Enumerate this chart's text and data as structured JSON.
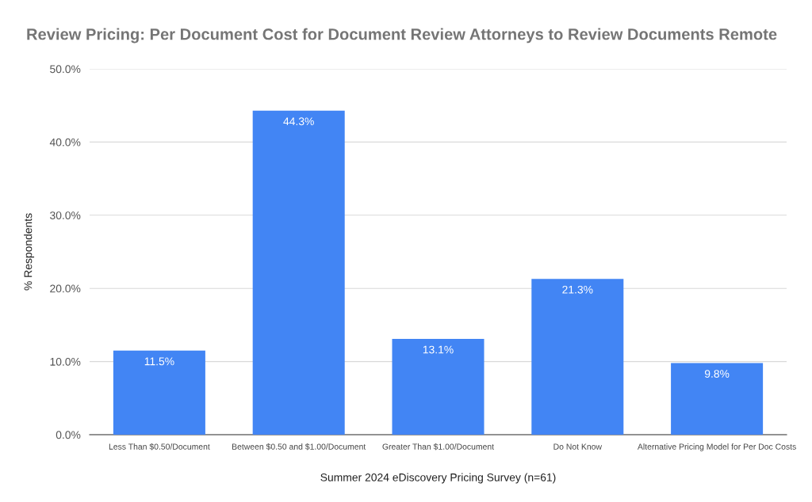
{
  "chart_data": {
    "type": "bar",
    "title": "Review Pricing: Per Document Cost for Document Review Attorneys to Review Documents Remote",
    "xlabel": "Summer 2024 eDiscovery Pricing Survey (n=61)",
    "ylabel": "% Respondents",
    "categories": [
      "Less Than $0.50/Document",
      "Between $0.50 and $1.00/Document",
      "Greater Than $1.00/Document",
      "Do Not Know",
      "Alternative Pricing Model for Per Doc Costs"
    ],
    "values": [
      11.5,
      44.3,
      13.1,
      21.3,
      9.8
    ],
    "value_labels": [
      "11.5%",
      "44.3%",
      "13.1%",
      "21.3%",
      "9.8%"
    ],
    "color": "#4285f4",
    "ylim": [
      0,
      50
    ],
    "yticks": [
      {
        "value": 0,
        "label": "0.0%"
      },
      {
        "value": 10,
        "label": "10.0%"
      },
      {
        "value": 20,
        "label": "20.0%"
      },
      {
        "value": 30,
        "label": "30.0%"
      },
      {
        "value": 40,
        "label": "40.0%"
      },
      {
        "value": 50,
        "label": "50.0%"
      }
    ],
    "grid": "y",
    "legend": false
  }
}
